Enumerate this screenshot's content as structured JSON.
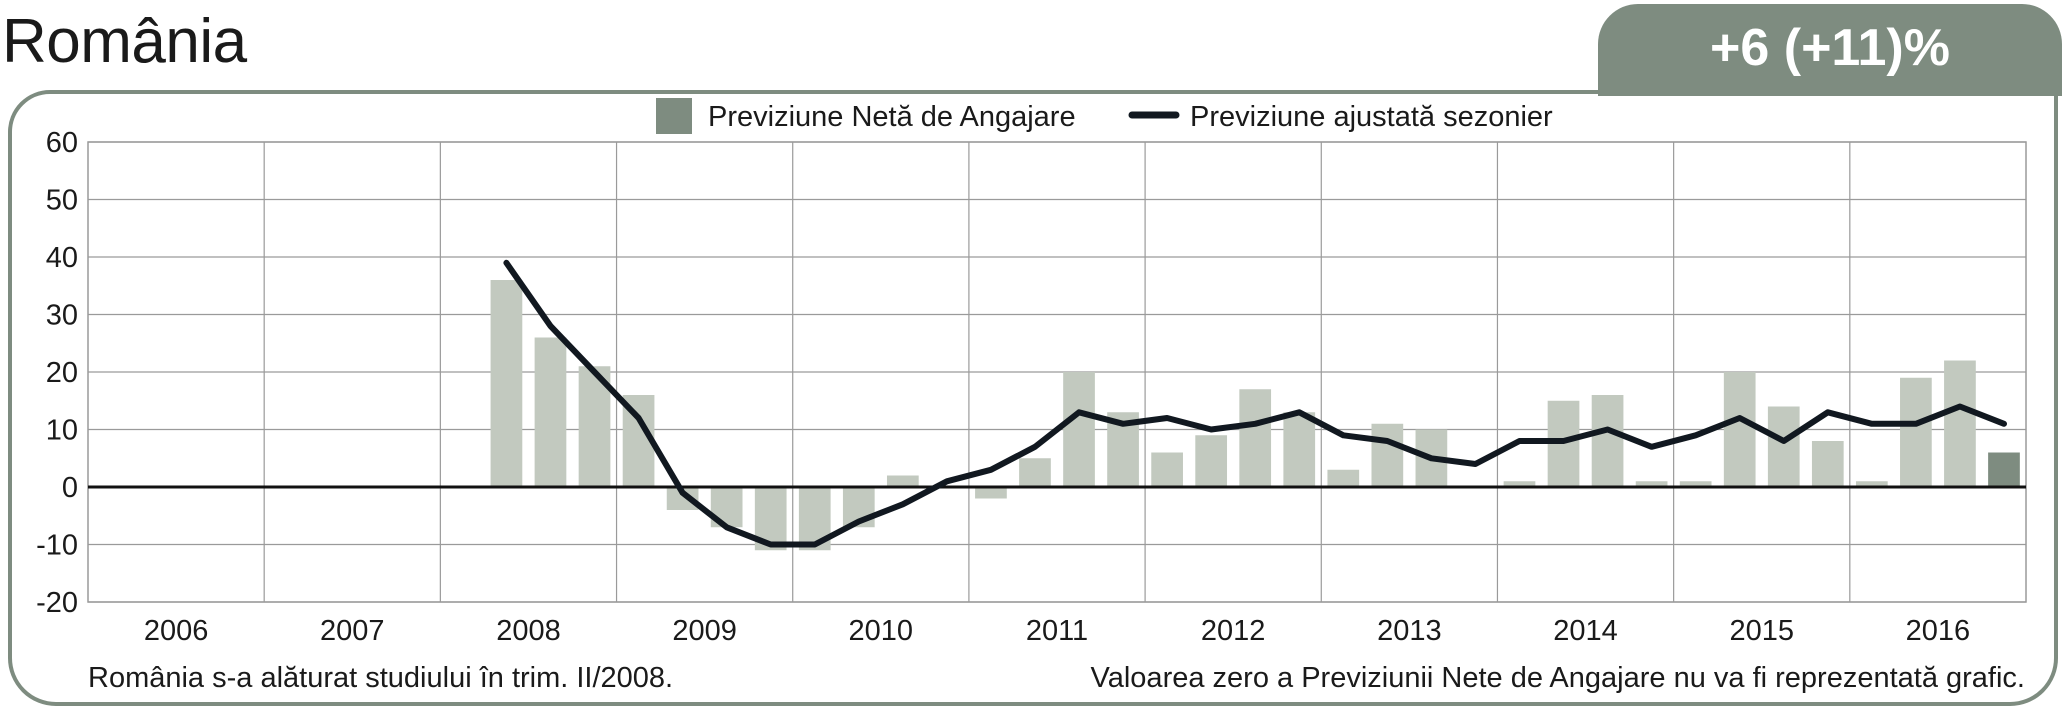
{
  "header": {
    "country": "România",
    "forecast_badge": "+6 (+11)%"
  },
  "notes": {
    "left": "România s-a alăturat studiului în trim. II/2008.",
    "right": "Valoarea zero a Previziunii Nete de Angajare nu va fi reprezentată grafic."
  },
  "colors": {
    "accent": "#7e8c80",
    "bar_history": "#c2c9bf",
    "bar_current": "#7e8c80",
    "line": "#111820",
    "grid": "#9a9a9a"
  },
  "chart_data": {
    "type": "bar",
    "legend": {
      "position": "top-center",
      "items": [
        {
          "label": "Previziune Netă de Angajare",
          "kind": "bar",
          "color": "#7e8c80"
        },
        {
          "label": "Previziune ajustată sezonier",
          "kind": "line",
          "color": "#111820"
        }
      ]
    },
    "x_ticks": [
      "2006",
      "2007",
      "2008",
      "2009",
      "2010",
      "2011",
      "2012",
      "2013",
      "2014",
      "2015",
      "2016"
    ],
    "ylim": [
      -20,
      60
    ],
    "y_ticks": [
      60,
      50,
      40,
      30,
      20,
      10,
      0,
      -10,
      -20
    ],
    "grid": true,
    "quarters_per_year": 4,
    "series": [
      {
        "name": "Previziune Netă de Angajare",
        "type": "bar",
        "values": [
          null,
          null,
          null,
          null,
          null,
          null,
          null,
          null,
          null,
          36,
          26,
          21,
          16,
          -4,
          -7,
          -11,
          -11,
          -7,
          2,
          0,
          -2,
          5,
          20,
          13,
          6,
          9,
          17,
          13,
          3,
          11,
          10,
          0,
          1,
          15,
          16,
          1,
          1,
          20,
          14,
          8,
          1,
          19,
          22,
          6
        ],
        "highlight_last": true
      },
      {
        "name": "Previziune ajustată sezonier",
        "type": "line",
        "values": [
          null,
          null,
          null,
          null,
          null,
          null,
          null,
          null,
          null,
          39,
          28,
          20,
          12,
          -1,
          -7,
          -10,
          -10,
          -6,
          -3,
          1,
          3,
          7,
          13,
          11,
          12,
          10,
          11,
          13,
          9,
          8,
          5,
          4,
          8,
          8,
          10,
          7,
          9,
          12,
          8,
          13,
          11,
          11,
          14,
          11
        ]
      }
    ]
  }
}
